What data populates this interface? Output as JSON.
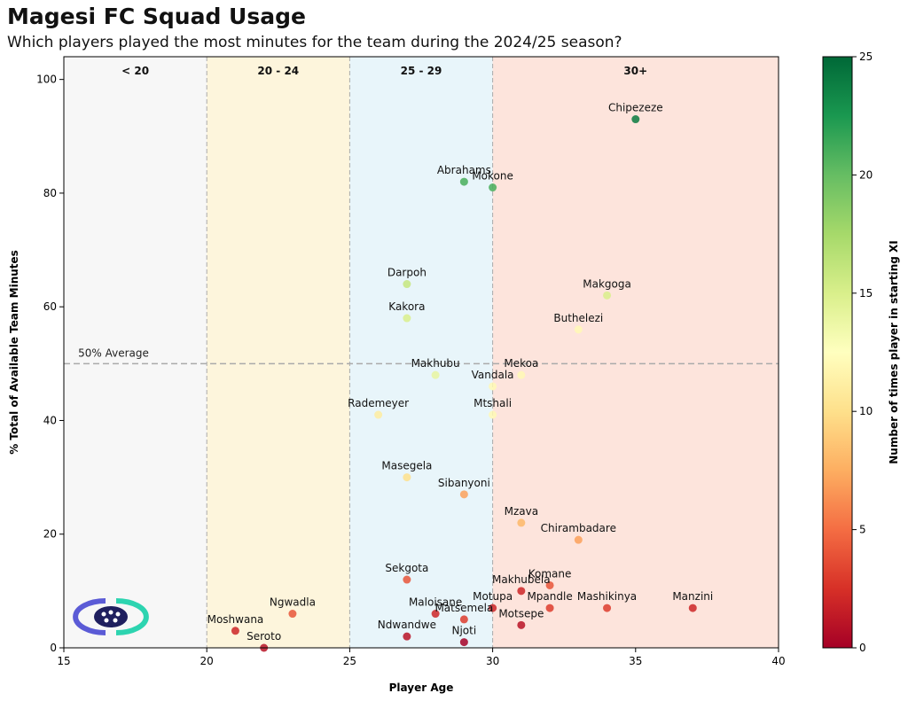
{
  "header": {
    "title": "Magesi FC Squad Usage",
    "subtitle": "Which players played the most minutes for the team during the 2024/25 season?"
  },
  "chart_data": {
    "type": "scatter",
    "xlabel": "Player Age",
    "ylabel": "% Total of Available Team Minutes",
    "xlim": [
      15,
      40
    ],
    "ylim": [
      0,
      104
    ],
    "xticks": [
      15,
      20,
      25,
      30,
      35,
      40
    ],
    "yticks": [
      0,
      20,
      40,
      60,
      80,
      100
    ],
    "grid": false,
    "colorbar": {
      "label": "Number of times player in starting XI",
      "range": [
        0,
        25
      ],
      "ticks": [
        0,
        5,
        10,
        15,
        20,
        25
      ],
      "colormap": "RdYlGn",
      "stops": [
        "#a50026",
        "#d73027",
        "#f46d43",
        "#fdae61",
        "#fee08b",
        "#ffffbf",
        "#d9ef8b",
        "#a6d96a",
        "#66bd63",
        "#1a9850",
        "#006837"
      ]
    },
    "age_bands": [
      {
        "label": "< 20",
        "from": 15,
        "to": 20,
        "color": "#f7f7f7"
      },
      {
        "label": "20 - 24",
        "from": 20,
        "to": 25,
        "color": "#fdf5dc"
      },
      {
        "label": "25 - 29",
        "from": 25,
        "to": 30,
        "color": "#e8f5fa"
      },
      {
        "label": "30+",
        "from": 30,
        "to": 40,
        "color": "#fde4dc"
      }
    ],
    "reference_line": {
      "value": 50,
      "label": "50% Average"
    },
    "points": [
      {
        "name": "Chipezeze",
        "age": 35,
        "minutes_pct": 93,
        "starts": 24
      },
      {
        "name": "Abrahams",
        "age": 29,
        "minutes_pct": 82,
        "starts": 21
      },
      {
        "name": "Mokone",
        "age": 30,
        "minutes_pct": 81,
        "starts": 21
      },
      {
        "name": "Darpoh",
        "age": 27,
        "minutes_pct": 64,
        "starts": 16
      },
      {
        "name": "Makgoga",
        "age": 34,
        "minutes_pct": 62,
        "starts": 15
      },
      {
        "name": "Kakora",
        "age": 27,
        "minutes_pct": 58,
        "starts": 15
      },
      {
        "name": "Buthelezi",
        "age": 33,
        "minutes_pct": 56,
        "starts": 12
      },
      {
        "name": "Makhubu",
        "age": 28,
        "minutes_pct": 48,
        "starts": 14
      },
      {
        "name": "Mekoa",
        "age": 31,
        "minutes_pct": 48,
        "starts": 12
      },
      {
        "name": "Vandala",
        "age": 30,
        "minutes_pct": 46,
        "starts": 12
      },
      {
        "name": "Rademeyer",
        "age": 26,
        "minutes_pct": 41,
        "starts": 11
      },
      {
        "name": "Mtshali",
        "age": 30,
        "minutes_pct": 41,
        "starts": 12
      },
      {
        "name": "Masegela",
        "age": 27,
        "minutes_pct": 30,
        "starts": 10
      },
      {
        "name": "Sibanyoni",
        "age": 29,
        "minutes_pct": 27,
        "starts": 7
      },
      {
        "name": "Mzava",
        "age": 31,
        "minutes_pct": 22,
        "starts": 8
      },
      {
        "name": "Chirambadare",
        "age": 33,
        "minutes_pct": 19,
        "starts": 7
      },
      {
        "name": "Sekgota",
        "age": 27,
        "minutes_pct": 12,
        "starts": 4
      },
      {
        "name": "Komane",
        "age": 32,
        "minutes_pct": 11,
        "starts": 4
      },
      {
        "name": "Makhubela",
        "age": 31,
        "minutes_pct": 10,
        "starts": 2
      },
      {
        "name": "Mpandle",
        "age": 32,
        "minutes_pct": 7,
        "starts": 3
      },
      {
        "name": "Mashikinya",
        "age": 34,
        "minutes_pct": 7,
        "starts": 3
      },
      {
        "name": "Manzini",
        "age": 37,
        "minutes_pct": 7,
        "starts": 2
      },
      {
        "name": "Motupa",
        "age": 30,
        "minutes_pct": 7,
        "starts": 2
      },
      {
        "name": "Ngwadla",
        "age": 23,
        "minutes_pct": 6,
        "starts": 4
      },
      {
        "name": "Maloisane",
        "age": 28,
        "minutes_pct": 6,
        "starts": 2
      },
      {
        "name": "Matsemela",
        "age": 29,
        "minutes_pct": 5,
        "starts": 3
      },
      {
        "name": "Motsepe",
        "age": 31,
        "minutes_pct": 4,
        "starts": 1
      },
      {
        "name": "Moshwana",
        "age": 21,
        "minutes_pct": 3,
        "starts": 2
      },
      {
        "name": "Ndwandwe",
        "age": 27,
        "minutes_pct": 2,
        "starts": 1
      },
      {
        "name": "Njoti",
        "age": 29,
        "minutes_pct": 1,
        "starts": 0
      },
      {
        "name": "Seroto",
        "age": 22,
        "minutes_pct": 0,
        "starts": 1
      }
    ]
  }
}
